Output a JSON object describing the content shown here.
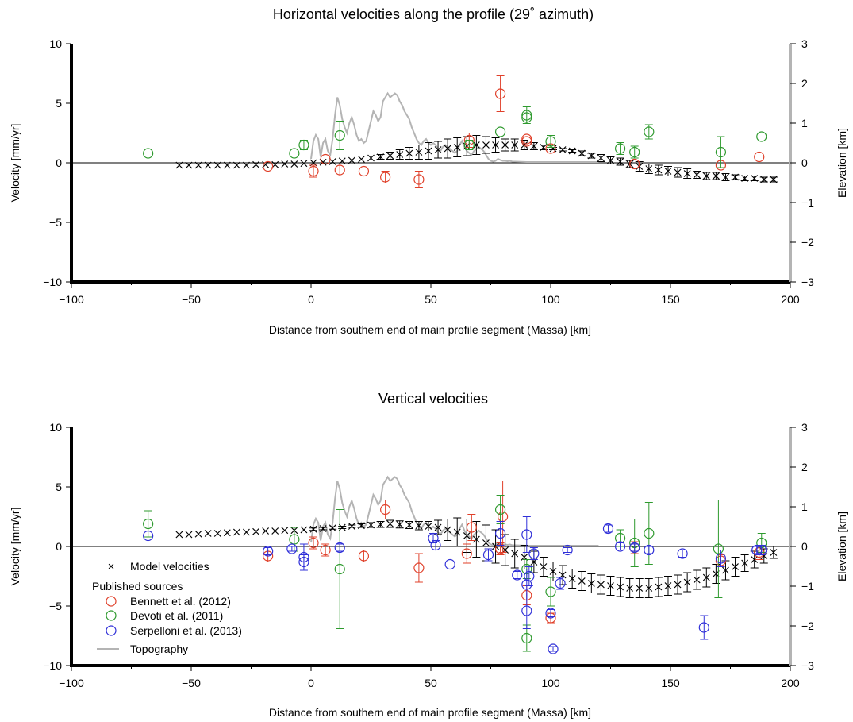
{
  "colors": {
    "bennett": "#e0402a",
    "devoti": "#2e9a2e",
    "serpelloni": "#3030d8",
    "model": "#000000",
    "topography": "#b4b4b4"
  },
  "chart_data": [
    {
      "type": "scatter",
      "title": "Horizontal velocities along the profile (29˚ azimuth)",
      "xlabel": "Distance from southern end of main profile segment (Massa) [km]",
      "ylabel": "Velocity [mm/yr]",
      "y2label": "Elevation [km]",
      "xlim": [
        -100,
        200
      ],
      "ylim": [
        -10,
        10
      ],
      "y2lim": [
        -3,
        3
      ],
      "xticks": [
        -100,
        -50,
        0,
        50,
        100,
        150,
        200
      ],
      "yticks": [
        -10,
        -5,
        0,
        5,
        10
      ],
      "y2ticks": [
        -3,
        -2,
        -1,
        0,
        1,
        2,
        3
      ],
      "zero_line": true,
      "series": [
        {
          "name": "Model velocities",
          "key": "model",
          "marker": "x",
          "x": [
            -55,
            -51,
            -47,
            -43,
            -39,
            -35,
            -31,
            -27,
            -23,
            -19,
            -15,
            -11,
            -7,
            -3,
            1,
            5,
            9,
            13,
            17,
            21,
            25,
            29,
            33,
            37,
            41,
            45,
            49,
            53,
            57,
            61,
            65,
            69,
            73,
            77,
            81,
            85,
            89,
            93,
            97,
            101,
            105,
            109,
            113,
            117,
            121,
            125,
            129,
            133,
            137,
            141,
            145,
            149,
            153,
            157,
            161,
            165,
            169,
            173,
            177,
            181,
            185,
            189,
            193
          ],
          "y": [
            -0.2,
            -0.2,
            -0.2,
            -0.2,
            -0.2,
            -0.2,
            -0.2,
            -0.2,
            -0.15,
            -0.15,
            -0.15,
            -0.1,
            -0.1,
            -0.05,
            0,
            0.05,
            0.1,
            0.15,
            0.2,
            0.3,
            0.4,
            0.5,
            0.6,
            0.7,
            0.8,
            0.9,
            1.0,
            1.1,
            1.2,
            1.3,
            1.4,
            1.5,
            1.5,
            1.5,
            1.5,
            1.5,
            1.5,
            1.4,
            1.3,
            1.2,
            1.1,
            1.0,
            0.8,
            0.6,
            0.4,
            0.2,
            0.1,
            -0.1,
            -0.3,
            -0.5,
            -0.6,
            -0.7,
            -0.8,
            -0.9,
            -1.0,
            -1.1,
            -1.1,
            -1.2,
            -1.2,
            -1.3,
            -1.3,
            -1.4,
            -1.4
          ],
          "err": [
            0,
            0,
            0,
            0,
            0,
            0,
            0,
            0,
            0,
            0,
            0,
            0,
            0,
            0,
            0,
            0,
            0,
            0,
            0,
            0,
            0,
            0.2,
            0.3,
            0.4,
            0.5,
            0.6,
            0.7,
            0.7,
            0.8,
            0.8,
            0.8,
            0.8,
            0.7,
            0.6,
            0.5,
            0.5,
            0.4,
            0.3,
            0.2,
            0.1,
            0.1,
            0.1,
            0.2,
            0.2,
            0.3,
            0.3,
            0.3,
            0.3,
            0.4,
            0.4,
            0.4,
            0.4,
            0.4,
            0.4,
            0.3,
            0.3,
            0.3,
            0.3,
            0.2,
            0.2,
            0.2,
            0.2,
            0.2
          ]
        },
        {
          "name": "Bennett et al. (2012)",
          "key": "bennett",
          "marker": "o",
          "x": [
            -18,
            1,
            6,
            12,
            22,
            31,
            45,
            66,
            79,
            90,
            90,
            100,
            135,
            171,
            187
          ],
          "y": [
            -0.3,
            -0.7,
            0.3,
            -0.6,
            -0.7,
            -1.2,
            -1.4,
            1.9,
            5.8,
            2.0,
            1.8,
            1.2,
            -0.1,
            -0.2,
            0.5
          ],
          "err": [
            0,
            0.5,
            0,
            0.5,
            0,
            0.5,
            0.7,
            0.6,
            1.5,
            0,
            0,
            0,
            0,
            0,
            0
          ]
        },
        {
          "name": "Devoti et al. (2011)",
          "key": "devoti",
          "marker": "o",
          "x": [
            -68,
            -7,
            -3,
            12,
            66,
            79,
            90,
            90,
            100,
            129,
            135,
            141,
            171,
            188
          ],
          "y": [
            0.8,
            0.8,
            1.5,
            2.3,
            1.5,
            2.6,
            4.0,
            3.8,
            1.8,
            1.2,
            0.9,
            2.6,
            0.9,
            2.2
          ],
          "err": [
            0,
            0,
            0.4,
            1.2,
            0.4,
            0,
            0.7,
            0,
            0.5,
            0.5,
            0.5,
            0.6,
            1.3,
            0
          ]
        }
      ],
      "topography": {
        "name": "Topography",
        "x": [
          0,
          1,
          2,
          3,
          4,
          5,
          6,
          7,
          8,
          9,
          10,
          11,
          12,
          13,
          14,
          15,
          16,
          17,
          18,
          19,
          20,
          21,
          22,
          23,
          24,
          25,
          26,
          27,
          28,
          29,
          30,
          31,
          32,
          33,
          34,
          35,
          36,
          37,
          38,
          39,
          40,
          41,
          42,
          43,
          44,
          45,
          46,
          47,
          48,
          49,
          50,
          51,
          52,
          53,
          54,
          55,
          56,
          57,
          58,
          59,
          60,
          61,
          62,
          63,
          64,
          65,
          66,
          67,
          68,
          69,
          70,
          71,
          72,
          73,
          74,
          75,
          76,
          77,
          78,
          79,
          80,
          81,
          82,
          83,
          84,
          85,
          90,
          100,
          120
        ],
        "y": [
          0.1,
          0.55,
          0.7,
          0.6,
          0.15,
          0.5,
          0.6,
          0.3,
          0.2,
          0.6,
          1.2,
          1.65,
          1.45,
          1.1,
          0.9,
          0.75,
          1.0,
          1.15,
          0.95,
          0.7,
          0.55,
          0.6,
          0.5,
          0.55,
          0.8,
          1.05,
          1.3,
          1.2,
          1.05,
          1.15,
          1.55,
          1.65,
          1.75,
          1.65,
          1.7,
          1.75,
          1.7,
          1.55,
          1.45,
          1.3,
          1.2,
          1.1,
          0.9,
          0.75,
          0.6,
          0.5,
          0.45,
          0.55,
          0.6,
          0.5,
          0.45,
          0.5,
          0.45,
          0.35,
          0.3,
          0.4,
          0.45,
          0.4,
          0.35,
          0.3,
          0.25,
          0.3,
          0.45,
          0.55,
          0.4,
          0.3,
          0.25,
          0.2,
          0.3,
          0.35,
          0.4,
          0.35,
          0.3,
          0.2,
          0.1,
          0.05,
          0.03,
          0.05,
          0.1,
          0.07,
          0.05,
          0.05,
          0.04,
          0.05,
          0.03,
          0.03,
          0.02,
          0.02,
          0.02
        ]
      }
    },
    {
      "type": "scatter",
      "title": "Vertical velocities",
      "xlabel": "Distance from southern end of main profile segment (Massa) [km]",
      "ylabel": "Velocity [mm/yr]",
      "y2label": "Elevation [km]",
      "xlim": [
        -100,
        200
      ],
      "ylim": [
        -10,
        10
      ],
      "y2lim": [
        -3,
        3
      ],
      "xticks": [
        -100,
        -50,
        0,
        50,
        100,
        150,
        200
      ],
      "yticks": [
        -10,
        -5,
        0,
        5,
        10
      ],
      "y2ticks": [
        -3,
        -2,
        -1,
        0,
        1,
        2,
        3
      ],
      "zero_line": true,
      "legend": {
        "placement": "bottom-left",
        "heading": "Published sources",
        "entries": [
          "Model velocities",
          "Bennett et al. (2012)",
          "Devoti et al. (2011)",
          "Serpelloni et al. (2013)",
          "Topography"
        ]
      },
      "series": [
        {
          "name": "Model velocities",
          "key": "model",
          "marker": "x",
          "x": [
            -55,
            -51,
            -47,
            -43,
            -39,
            -35,
            -31,
            -27,
            -23,
            -19,
            -15,
            -11,
            -7,
            -3,
            1,
            5,
            9,
            13,
            17,
            21,
            25,
            29,
            33,
            37,
            41,
            45,
            49,
            53,
            57,
            61,
            65,
            69,
            73,
            77,
            81,
            85,
            89,
            93,
            97,
            101,
            105,
            109,
            113,
            117,
            121,
            125,
            129,
            133,
            137,
            141,
            145,
            149,
            153,
            157,
            161,
            165,
            169,
            173,
            177,
            181,
            185,
            189,
            193
          ],
          "y": [
            1.0,
            1.0,
            1.05,
            1.1,
            1.1,
            1.15,
            1.2,
            1.2,
            1.25,
            1.3,
            1.3,
            1.35,
            1.35,
            1.4,
            1.45,
            1.5,
            1.55,
            1.6,
            1.7,
            1.75,
            1.8,
            1.85,
            1.9,
            1.85,
            1.8,
            1.75,
            1.7,
            1.6,
            1.4,
            1.2,
            0.9,
            0.6,
            0.3,
            0.0,
            -0.3,
            -0.6,
            -0.9,
            -1.3,
            -1.7,
            -2.1,
            -2.4,
            -2.7,
            -2.9,
            -3.1,
            -3.2,
            -3.3,
            -3.4,
            -3.5,
            -3.5,
            -3.5,
            -3.4,
            -3.3,
            -3.2,
            -3.0,
            -2.8,
            -2.6,
            -2.3,
            -2.0,
            -1.7,
            -1.4,
            -1.1,
            -0.8,
            -0.5
          ],
          "err": [
            0,
            0,
            0,
            0,
            0,
            0,
            0,
            0,
            0,
            0,
            0,
            0,
            0,
            0,
            0.1,
            0.1,
            0.1,
            0.1,
            0.1,
            0.15,
            0.2,
            0.25,
            0.3,
            0.3,
            0.3,
            0.35,
            0.4,
            0.6,
            0.9,
            1.2,
            1.4,
            1.5,
            1.5,
            1.4,
            1.3,
            1.2,
            1.0,
            0.9,
            0.8,
            0.8,
            0.8,
            0.8,
            0.8,
            0.8,
            0.8,
            0.8,
            0.8,
            0.8,
            0.8,
            0.8,
            0.8,
            0.8,
            0.8,
            0.8,
            0.8,
            0.8,
            0.8,
            0.8,
            0.8,
            0.7,
            0.7,
            0.6,
            0.5
          ]
        },
        {
          "name": "Bennett et al. (2012)",
          "key": "bennett",
          "marker": "o",
          "x": [
            -18,
            1,
            6,
            22,
            31,
            45,
            65,
            67,
            79,
            80,
            90,
            100,
            135,
            171,
            187
          ],
          "y": [
            -0.8,
            0.3,
            -0.3,
            -0.8,
            3.1,
            -1.8,
            -0.6,
            1.6,
            -0.2,
            2.5,
            -4.1,
            -6.0,
            -0.1,
            -1.2,
            -0.5
          ],
          "err": [
            0.5,
            0.5,
            0.5,
            0.5,
            0.8,
            1.2,
            0.8,
            1.1,
            0.5,
            3.0,
            0.8,
            0.4,
            0.5,
            0.5,
            0.6
          ]
        },
        {
          "name": "Devoti et al. (2011)",
          "key": "devoti",
          "marker": "o",
          "x": [
            -68,
            -7,
            12,
            79,
            90,
            90,
            100,
            129,
            135,
            141,
            170,
            188
          ],
          "y": [
            1.9,
            0.6,
            -1.9,
            3.1,
            -1.9,
            -7.7,
            -3.8,
            0.7,
            0.3,
            1.1,
            -0.2,
            0.3
          ],
          "err": [
            1.1,
            1.0,
            5.0,
            1.2,
            0.8,
            1.1,
            1.2,
            0.7,
            2.0,
            2.6,
            4.1,
            0.8
          ]
        },
        {
          "name": "Serpelloni et al. (2013)",
          "key": "serpelloni",
          "marker": "o",
          "x": [
            -68,
            -18,
            -8,
            -3,
            -3,
            12,
            51,
            52,
            58,
            74,
            79,
            86,
            90,
            90,
            90,
            91,
            93,
            100,
            101,
            104,
            107,
            124,
            129,
            135,
            141,
            155,
            164,
            171,
            186,
            188
          ],
          "y": [
            0.9,
            -0.4,
            -0.2,
            -0.9,
            -1.3,
            -0.1,
            0.7,
            0.1,
            -1.5,
            -0.7,
            1.1,
            -2.4,
            -3.2,
            -5.4,
            1.0,
            -2.5,
            -0.6,
            -5.6,
            -8.6,
            -3.1,
            -0.3,
            1.5,
            0.0,
            -0.1,
            -0.3,
            -0.6,
            -6.8,
            -1.0,
            -0.3,
            -0.3
          ],
          "err": [
            0,
            0.3,
            0.2,
            1.1,
            0.6,
            0.3,
            0.4,
            0.4,
            0,
            0.5,
            1.0,
            0.3,
            1.3,
            1.5,
            1.5,
            0.8,
            0.5,
            0.3,
            0.2,
            0.5,
            0.2,
            0.3,
            0.3,
            0.3,
            0.3,
            0.3,
            1.0,
            0.7,
            0.3,
            0.4
          ]
        }
      ],
      "topography": {
        "name": "Topography",
        "x": [
          0,
          1,
          2,
          3,
          4,
          5,
          6,
          7,
          8,
          9,
          10,
          11,
          12,
          13,
          14,
          15,
          16,
          17,
          18,
          19,
          20,
          21,
          22,
          23,
          24,
          25,
          26,
          27,
          28,
          29,
          30,
          31,
          32,
          33,
          34,
          35,
          36,
          37,
          38,
          39,
          40,
          41,
          42,
          43,
          44,
          45,
          46,
          47,
          48,
          49,
          50,
          51,
          52,
          53,
          54,
          55,
          56,
          57,
          58,
          59,
          60,
          61,
          62,
          63,
          64,
          65,
          66,
          67,
          68,
          69,
          70,
          71,
          72,
          73,
          74,
          75,
          76,
          77,
          78,
          79,
          80,
          81,
          82,
          83,
          84,
          85,
          90,
          100,
          120
        ],
        "y": [
          0.1,
          0.55,
          0.7,
          0.6,
          0.15,
          0.5,
          0.6,
          0.3,
          0.2,
          0.6,
          1.2,
          1.65,
          1.45,
          1.1,
          0.9,
          0.75,
          1.0,
          1.15,
          0.95,
          0.7,
          0.55,
          0.6,
          0.5,
          0.55,
          0.8,
          1.05,
          1.3,
          1.2,
          1.05,
          1.15,
          1.55,
          1.65,
          1.75,
          1.65,
          1.7,
          1.75,
          1.7,
          1.55,
          1.45,
          1.3,
          1.2,
          1.1,
          0.9,
          0.75,
          0.6,
          0.5,
          0.45,
          0.55,
          0.6,
          0.5,
          0.45,
          0.5,
          0.45,
          0.35,
          0.3,
          0.4,
          0.45,
          0.4,
          0.35,
          0.3,
          0.25,
          0.3,
          0.45,
          0.55,
          0.4,
          0.3,
          0.25,
          0.2,
          0.3,
          0.35,
          0.4,
          0.35,
          0.3,
          0.2,
          0.1,
          0.05,
          0.03,
          0.05,
          0.1,
          0.07,
          0.05,
          0.05,
          0.04,
          0.05,
          0.03,
          0.03,
          0.02,
          0.02,
          0.02
        ]
      }
    }
  ]
}
